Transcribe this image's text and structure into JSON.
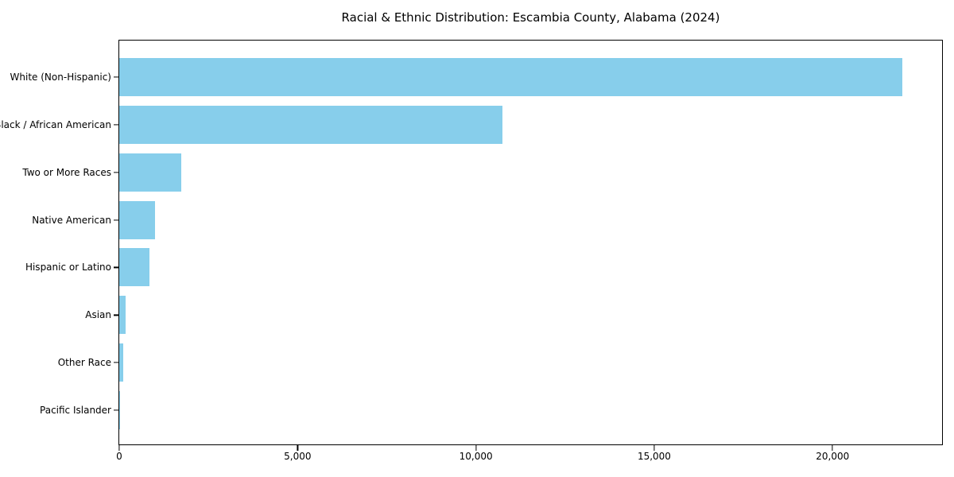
{
  "page": {
    "background_color": "#FFFFFF",
    "text_color": "#000000",
    "spine_color": "#000000"
  },
  "chart_data": {
    "type": "bar",
    "orientation": "horizontal",
    "title": "Racial & Ethnic Distribution: Escambia County, Alabama (2024)",
    "categories": [
      "White (Non-Hispanic)",
      "Black / African American",
      "Two or More Races",
      "Native American",
      "Hispanic or Latino",
      "Asian",
      "Other Race",
      "Pacific Islander"
    ],
    "values": [
      21950,
      10740,
      1740,
      1010,
      850,
      170,
      120,
      10
    ],
    "xlabel": "",
    "ylabel": "",
    "xlim": [
      0,
      23070
    ],
    "x_ticks": [
      {
        "value": 0,
        "label": "0"
      },
      {
        "value": 5000,
        "label": "5,000"
      },
      {
        "value": 10000,
        "label": "10,000"
      },
      {
        "value": 15000,
        "label": "15,000"
      },
      {
        "value": 20000,
        "label": "20,000"
      }
    ],
    "bar_color": "#87CEEB",
    "bar_height_fraction": 0.8,
    "grid": false,
    "legend": false
  }
}
